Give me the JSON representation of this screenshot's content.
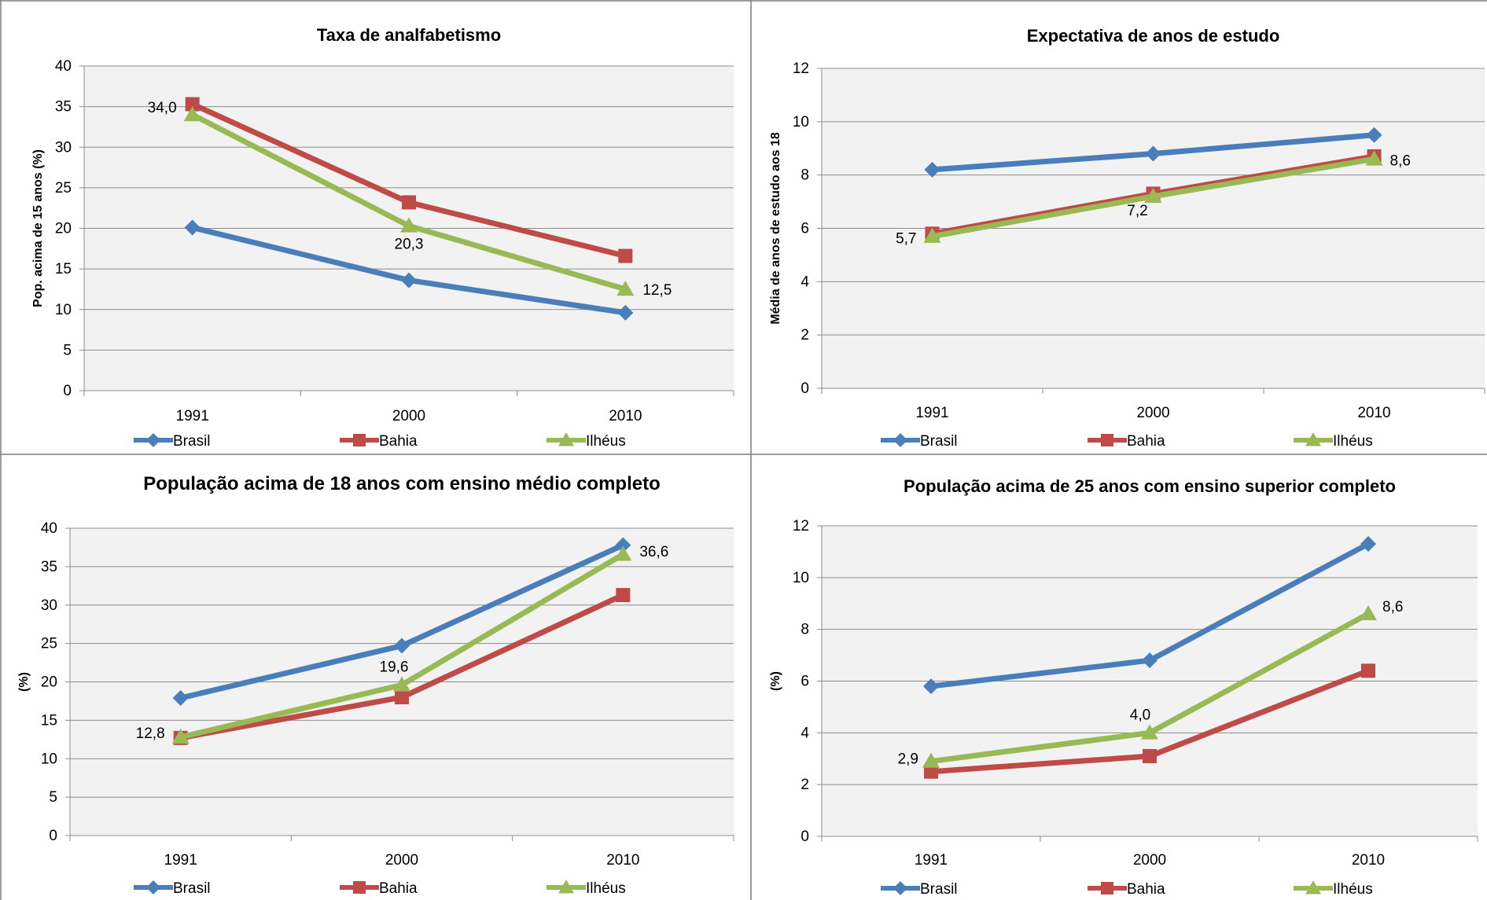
{
  "colors": {
    "Brasil": "#4a7ebb",
    "Bahia": "#be4b48",
    "Ilhéus": "#98b954",
    "plot_bg": "#f2f2f2",
    "grid": "#8c8c8c",
    "border": "#7f7f7f"
  },
  "chart_data": [
    {
      "type": "line",
      "title": "Taxa de analfabetismo",
      "ylabel": "Pop. acima de 15 anos (%)",
      "xlabel": "",
      "categories": [
        "1991",
        "2000",
        "2010"
      ],
      "ylim": [
        0,
        40
      ],
      "yticks": [
        "0",
        "5",
        "10",
        "15",
        "20",
        "25",
        "30",
        "35",
        "40"
      ],
      "grid": true,
      "legend": "bottom",
      "series": [
        {
          "name": "Brasil",
          "values": [
            20.1,
            13.6,
            9.6
          ],
          "marker": "diamond"
        },
        {
          "name": "Bahia",
          "values": [
            35.3,
            23.2,
            16.6
          ],
          "marker": "square"
        },
        {
          "name": "Ilhéus",
          "values": [
            34.0,
            20.3,
            12.5
          ],
          "marker": "triangle",
          "labels": [
            "34,0",
            "20,3",
            "12,5"
          ]
        }
      ]
    },
    {
      "type": "line",
      "title": "Expectativa de anos de estudo",
      "ylabel": "Média de anos de estudo aos 18",
      "xlabel": "",
      "categories": [
        "1991",
        "2000",
        "2010"
      ],
      "ylim": [
        0,
        12
      ],
      "yticks": [
        "0",
        "2",
        "4",
        "6",
        "8",
        "10",
        "12"
      ],
      "grid": true,
      "legend": "bottom",
      "series": [
        {
          "name": "Brasil",
          "values": [
            8.2,
            8.8,
            9.5
          ],
          "marker": "diamond"
        },
        {
          "name": "Bahia",
          "values": [
            5.8,
            7.3,
            8.7
          ],
          "marker": "square"
        },
        {
          "name": "Ilhéus",
          "values": [
            5.7,
            7.2,
            8.6
          ],
          "marker": "triangle",
          "labels": [
            "5,7",
            "7,2",
            "8,6"
          ]
        }
      ]
    },
    {
      "type": "line",
      "title": "População acima de 18 anos com ensino médio completo",
      "ylabel": "(%)",
      "xlabel": "",
      "categories": [
        "1991",
        "2000",
        "2010"
      ],
      "ylim": [
        0,
        40
      ],
      "yticks": [
        "0",
        "5",
        "10",
        "15",
        "20",
        "25",
        "30",
        "35",
        "40"
      ],
      "grid": true,
      "legend": "bottom",
      "series": [
        {
          "name": "Brasil",
          "values": [
            17.9,
            24.7,
            37.8
          ],
          "marker": "diamond"
        },
        {
          "name": "Bahia",
          "values": [
            12.7,
            18.0,
            31.3
          ],
          "marker": "square"
        },
        {
          "name": "Ilhéus",
          "values": [
            12.8,
            19.6,
            36.6
          ],
          "marker": "triangle",
          "labels": [
            "12,8",
            "19,6",
            "36,6"
          ]
        }
      ]
    },
    {
      "type": "line",
      "title": "População acima de 25 anos com ensino superior completo",
      "ylabel": "(%)",
      "xlabel": "",
      "categories": [
        "1991",
        "2000",
        "2010"
      ],
      "ylim": [
        0,
        12
      ],
      "yticks": [
        "0",
        "2",
        "4",
        "6",
        "8",
        "10",
        "12"
      ],
      "grid": true,
      "legend": "bottom",
      "series": [
        {
          "name": "Brasil",
          "values": [
            5.8,
            6.8,
            11.3
          ],
          "marker": "diamond"
        },
        {
          "name": "Bahia",
          "values": [
            2.5,
            3.1,
            6.4
          ],
          "marker": "square"
        },
        {
          "name": "Ilhéus",
          "values": [
            2.9,
            4.0,
            8.6
          ],
          "marker": "triangle",
          "labels": [
            "2,9",
            "4,0",
            "8,6"
          ]
        }
      ]
    }
  ]
}
